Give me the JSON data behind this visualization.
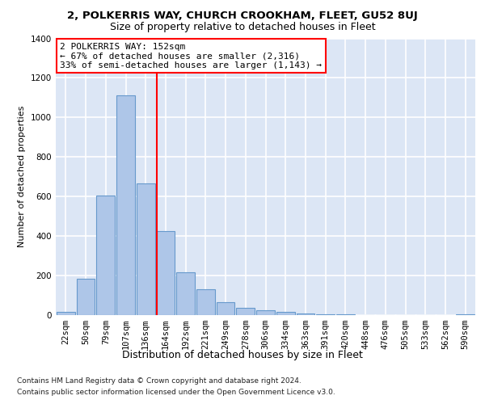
{
  "title_main": "2, POLKERRIS WAY, CHURCH CROOKHAM, FLEET, GU52 8UJ",
  "title_sub": "Size of property relative to detached houses in Fleet",
  "xlabel": "Distribution of detached houses by size in Fleet",
  "ylabel": "Number of detached properties",
  "categories": [
    "22sqm",
    "50sqm",
    "79sqm",
    "107sqm",
    "136sqm",
    "164sqm",
    "192sqm",
    "221sqm",
    "249sqm",
    "278sqm",
    "306sqm",
    "334sqm",
    "363sqm",
    "391sqm",
    "420sqm",
    "448sqm",
    "476sqm",
    "505sqm",
    "533sqm",
    "562sqm",
    "590sqm"
  ],
  "bar_values": [
    15,
    185,
    605,
    1110,
    665,
    425,
    215,
    130,
    65,
    35,
    25,
    18,
    8,
    5,
    3,
    2,
    1,
    1,
    0,
    0,
    5
  ],
  "bar_color": "#aec6e8",
  "bar_edge_color": "#6699cc",
  "vline_color": "red",
  "vline_pos": 4.57,
  "ylim": [
    0,
    1400
  ],
  "yticks": [
    0,
    200,
    400,
    600,
    800,
    1000,
    1200,
    1400
  ],
  "annotation_line1": "2 POLKERRIS WAY: 152sqm",
  "annotation_line2": "← 67% of detached houses are smaller (2,316)",
  "annotation_line3": "33% of semi-detached houses are larger (1,143) →",
  "annotation_box_color": "white",
  "annotation_box_edge": "red",
  "footer1": "Contains HM Land Registry data © Crown copyright and database right 2024.",
  "footer2": "Contains public sector information licensed under the Open Government Licence v3.0.",
  "background_color": "#dce6f5",
  "grid_color": "white",
  "title_main_fontsize": 9.5,
  "title_sub_fontsize": 9,
  "ylabel_fontsize": 8,
  "xlabel_fontsize": 9,
  "tick_fontsize": 7.5,
  "annot_fontsize": 8
}
